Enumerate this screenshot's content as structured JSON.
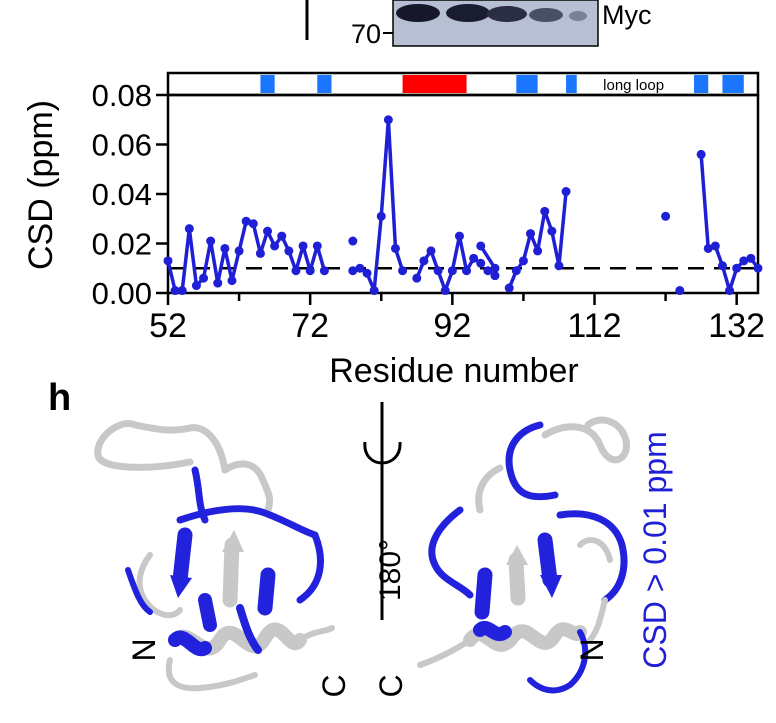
{
  "blot": {
    "mw_marker": "70",
    "band_label": "Myc"
  },
  "panel_h": {
    "label": "h",
    "rotation_label": "180°",
    "legend": "CSD > 0.01 ppm",
    "left_termini": [
      "N",
      "C"
    ],
    "right_termini": [
      "N",
      "C"
    ]
  },
  "colors": {
    "series": "#1f1fd6",
    "bar_blue": "#1a75ff",
    "bar_red": "#ff0000",
    "ribbon_gray": "#c8c8c8",
    "ribbon_blue": "#2222dd"
  },
  "chart_data": {
    "type": "line",
    "title": "",
    "xlabel": "Residue number",
    "ylabel": "CSD (ppm)",
    "xlim": [
      52,
      135
    ],
    "ylim": [
      0.0,
      0.08
    ],
    "xticks": [
      52,
      72,
      92,
      112,
      132
    ],
    "xtick_labels": [
      "52",
      "72",
      "92",
      "112",
      "132"
    ],
    "yticks": [
      0.0,
      0.02,
      0.04,
      0.06,
      0.08
    ],
    "ytick_labels": [
      "0.00",
      "0.02",
      "0.04",
      "0.06",
      "0.08"
    ],
    "threshold": 0.01,
    "threshold_style": "dashed",
    "segments": [
      [
        [
          52,
          0.013
        ],
        [
          53,
          0.001
        ],
        [
          54,
          0.001
        ],
        [
          55,
          0.026
        ],
        [
          56,
          0.003
        ],
        [
          57,
          0.006
        ],
        [
          58,
          0.021
        ],
        [
          59,
          0.004
        ],
        [
          60,
          0.018
        ],
        [
          61,
          0.005
        ],
        [
          62,
          0.017
        ],
        [
          63,
          0.029
        ],
        [
          64,
          0.028
        ],
        [
          65,
          0.016
        ],
        [
          66,
          0.025
        ],
        [
          67,
          0.019
        ],
        [
          68,
          0.023
        ],
        [
          69,
          0.017
        ],
        [
          70,
          0.009
        ],
        [
          71,
          0.019
        ],
        [
          72,
          0.009
        ],
        [
          73,
          0.019
        ],
        [
          74,
          0.009
        ]
      ],
      [
        [
          78,
          0.009
        ],
        [
          79,
          0.01
        ],
        [
          80,
          0.008
        ],
        [
          81,
          0.001
        ],
        [
          82,
          0.031
        ],
        [
          83,
          0.07
        ],
        [
          84,
          0.018
        ],
        [
          85,
          0.009
        ]
      ],
      [
        [
          87,
          0.006
        ],
        [
          88,
          0.013
        ],
        [
          89,
          0.017
        ],
        [
          90,
          0.009
        ],
        [
          91,
          0.001
        ],
        [
          92,
          0.009
        ],
        [
          93,
          0.023
        ],
        [
          94,
          0.009
        ],
        [
          95,
          0.014
        ],
        [
          96,
          0.012
        ]
      ],
      [
        [
          96,
          0.019
        ],
        [
          98,
          0.01
        ]
      ],
      [
        [
          100,
          0.002
        ],
        [
          101,
          0.009
        ],
        [
          102,
          0.013
        ],
        [
          103,
          0.024
        ],
        [
          104,
          0.017
        ],
        [
          105,
          0.033
        ],
        [
          106,
          0.025
        ],
        [
          107,
          0.011
        ],
        [
          108,
          0.041
        ]
      ],
      [
        [
          127,
          0.056
        ],
        [
          128,
          0.018
        ],
        [
          129,
          0.019
        ],
        [
          130,
          0.011
        ],
        [
          131,
          0.001
        ],
        [
          132,
          0.01
        ],
        [
          133,
          0.013
        ],
        [
          134,
          0.014
        ],
        [
          135,
          0.01
        ]
      ]
    ],
    "isolated_points": [
      [
        78,
        0.021
      ],
      [
        97,
        0.009
      ],
      [
        98,
        0.007
      ],
      [
        122,
        0.031
      ],
      [
        124,
        0.001
      ]
    ],
    "secondary_structure": [
      {
        "start": 65,
        "end": 67,
        "type": "strand",
        "color": "blue"
      },
      {
        "start": 73,
        "end": 75,
        "type": "strand",
        "color": "blue"
      },
      {
        "start": 85,
        "end": 94,
        "type": "helix",
        "color": "red"
      },
      {
        "start": 101,
        "end": 104,
        "type": "strand",
        "color": "blue"
      },
      {
        "start": 108,
        "end": 109.5,
        "type": "strand",
        "color": "blue"
      },
      {
        "start": 126,
        "end": 128,
        "type": "strand",
        "color": "blue"
      },
      {
        "start": 130,
        "end": 133,
        "type": "strand",
        "color": "blue"
      }
    ],
    "annotations": [
      {
        "text": "long loop",
        "x_start": 110,
        "x_end": 125
      }
    ]
  }
}
